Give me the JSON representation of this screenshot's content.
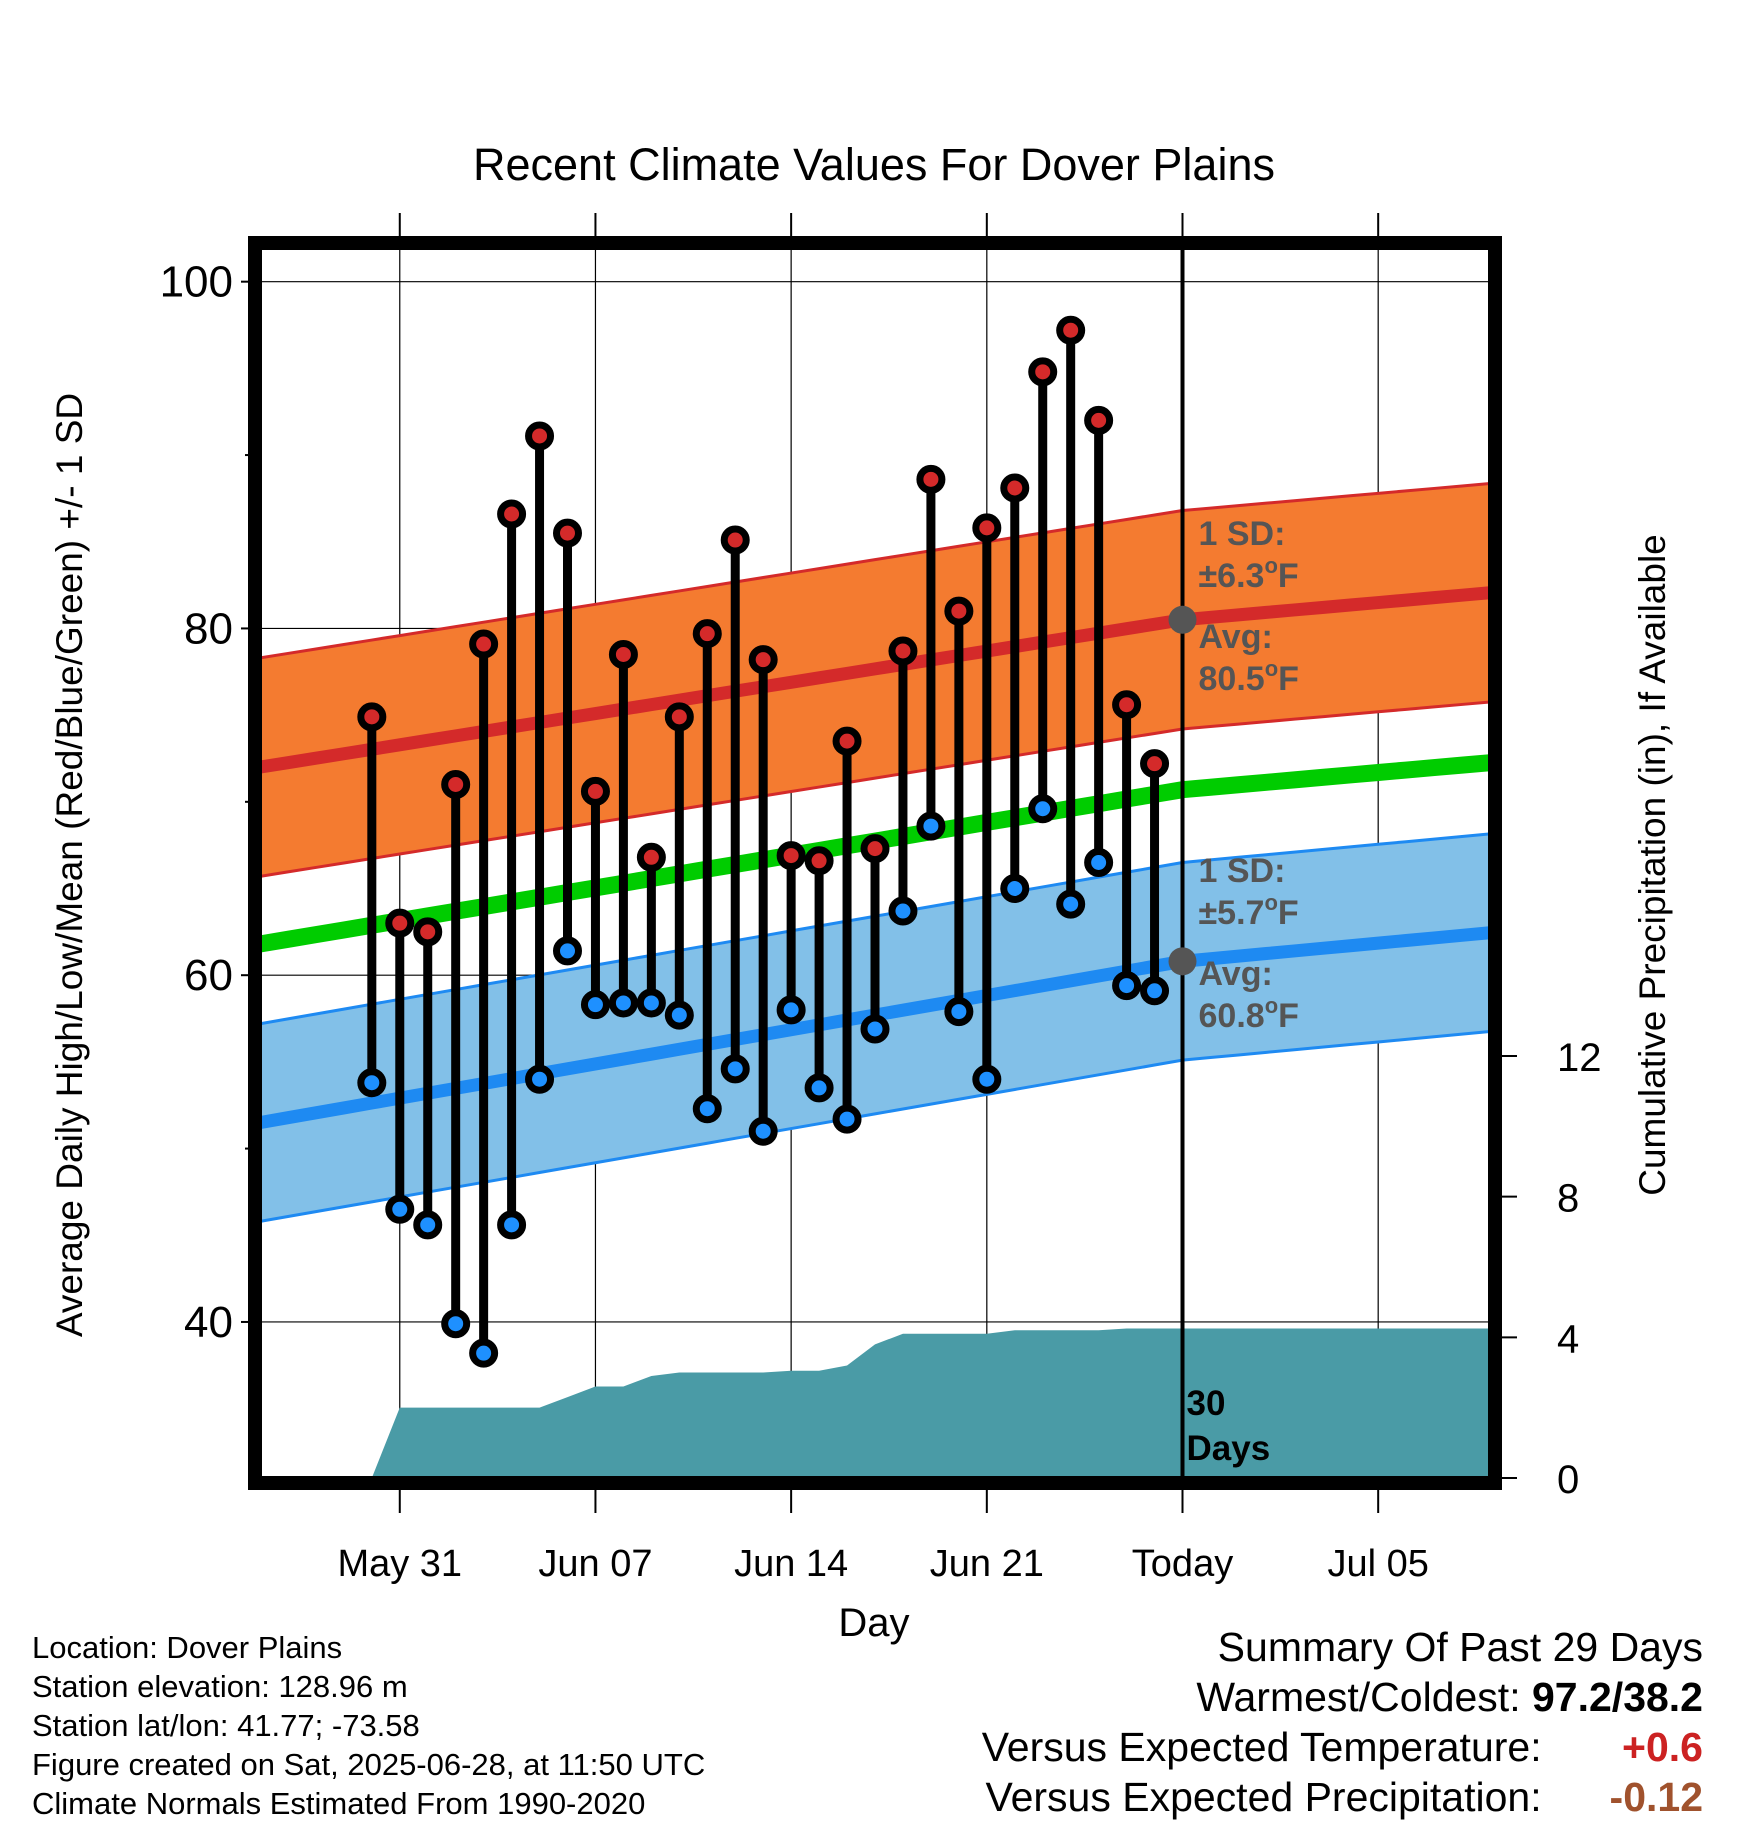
{
  "chart_data": {
    "type": "line",
    "title": "Recent Climate Values For Dover Plains",
    "xlabel": "Day",
    "ylabel": "Average Daily High/Low/Mean (Red/Blue/Green) +/- 1 SD",
    "y2label": "Cumulative Precipitation (in), If Available",
    "xlim": [
      "2025-05-26",
      "2025-07-09"
    ],
    "ylim": [
      31,
      102
    ],
    "y2lim": [
      0,
      35
    ],
    "y_ticks": [
      "40",
      "60",
      "80",
      "100"
    ],
    "y2_ticks": [
      "0",
      "4",
      "8",
      "12"
    ],
    "x_ticks": [
      {
        "date": "2025-05-31",
        "label": "May 31"
      },
      {
        "date": "2025-06-07",
        "label": "Jun 07"
      },
      {
        "date": "2025-06-14",
        "label": "Jun 14"
      },
      {
        "date": "2025-06-21",
        "label": "Jun 21"
      },
      {
        "date": "2025-06-28",
        "label": "Today"
      },
      {
        "date": "2025-07-05",
        "label": "Jul 05"
      }
    ],
    "grid": true,
    "normals": {
      "high_mean": {
        "dates": [
          "2025-05-26",
          "2025-06-28",
          "2025-07-10"
        ],
        "values": [
          72.0,
          80.5,
          82.2
        ]
      },
      "low_mean": {
        "dates": [
          "2025-05-26",
          "2025-06-28",
          "2025-07-10"
        ],
        "values": [
          51.5,
          60.8,
          62.6
        ]
      },
      "mean": {
        "dates": [
          "2025-05-26",
          "2025-06-28",
          "2025-07-10"
        ],
        "values": [
          61.8,
          70.7,
          72.4
        ]
      },
      "high_sd": 6.3,
      "low_sd": 5.7
    },
    "daily": {
      "dates": [
        "2025-05-30",
        "2025-05-31",
        "2025-06-01",
        "2025-06-02",
        "2025-06-03",
        "2025-06-04",
        "2025-06-05",
        "2025-06-06",
        "2025-06-07",
        "2025-06-08",
        "2025-06-09",
        "2025-06-10",
        "2025-06-11",
        "2025-06-12",
        "2025-06-13",
        "2025-06-14",
        "2025-06-15",
        "2025-06-16",
        "2025-06-17",
        "2025-06-18",
        "2025-06-19",
        "2025-06-20",
        "2025-06-21",
        "2025-06-22",
        "2025-06-23",
        "2025-06-24",
        "2025-06-25",
        "2025-06-26",
        "2025-06-27"
      ],
      "highs": [
        74.9,
        63.0,
        62.5,
        71.0,
        79.1,
        86.6,
        91.1,
        85.5,
        70.6,
        78.5,
        66.8,
        74.9,
        79.7,
        85.1,
        78.2,
        66.9,
        66.6,
        73.5,
        67.3,
        78.7,
        88.6,
        81.0,
        85.8,
        88.1,
        94.8,
        97.2,
        92.0,
        75.6,
        72.2
      ],
      "lows": [
        53.8,
        46.5,
        45.6,
        39.9,
        38.2,
        45.6,
        54.0,
        61.4,
        58.3,
        58.4,
        58.4,
        57.7,
        52.3,
        54.6,
        51.0,
        58.0,
        53.5,
        51.7,
        56.9,
        63.7,
        68.6,
        57.9,
        54.0,
        65.0,
        69.6,
        64.1,
        66.5,
        59.4,
        59.1
      ]
    },
    "precip_cumulative": {
      "dates": [
        "2025-05-30",
        "2025-05-31",
        "2025-06-01",
        "2025-06-02",
        "2025-06-03",
        "2025-06-04",
        "2025-06-05",
        "2025-06-06",
        "2025-06-07",
        "2025-06-08",
        "2025-06-09",
        "2025-06-10",
        "2025-06-11",
        "2025-06-12",
        "2025-06-13",
        "2025-06-14",
        "2025-06-15",
        "2025-06-16",
        "2025-06-17",
        "2025-06-18",
        "2025-06-19",
        "2025-06-20",
        "2025-06-21",
        "2025-06-22",
        "2025-06-23",
        "2025-06-24",
        "2025-06-25",
        "2025-06-26",
        "2025-06-27",
        "2025-06-28",
        "2025-07-09"
      ],
      "values": [
        0.0,
        2.0,
        2.0,
        2.0,
        2.0,
        2.0,
        2.0,
        2.3,
        2.6,
        2.6,
        2.9,
        3.0,
        3.0,
        3.0,
        3.0,
        3.05,
        3.05,
        3.2,
        3.8,
        4.1,
        4.1,
        4.1,
        4.1,
        4.2,
        4.2,
        4.2,
        4.2,
        4.25,
        4.25,
        4.25,
        4.25
      ]
    },
    "annotations": {
      "high_sd_label": [
        "1 SD:",
        "±6.3°F"
      ],
      "high_avg_label": [
        "Avg:",
        "80.5°F"
      ],
      "low_sd_label": [
        "1 SD:",
        "±5.7°F"
      ],
      "low_avg_label": [
        "Avg:",
        "60.8°F"
      ],
      "window_label": [
        "30",
        "Days"
      ]
    },
    "colors": {
      "high_band": "#f47b30",
      "high_line": "#d42a2a",
      "low_band": "#82c0e8",
      "low_line": "#1e8af2",
      "mean_line": "#00cc00",
      "precip": "#4a9ba6",
      "high_marker": "#d42a2a",
      "low_marker": "#1e90ff",
      "annotation_text": "#555555"
    }
  },
  "footer": {
    "location": "Location: Dover Plains",
    "elevation": "Station elevation: 128.96 m",
    "latlon": "Station lat/lon: 41.77; -73.58",
    "created": "Figure created on Sat, 2025-06-28, at 11:50 UTC",
    "normals": "Climate Normals Estimated From 1990-2020"
  },
  "summary": {
    "title": "Summary Of Past 29 Days",
    "warmest_label": "Warmest/Coldest:",
    "warmest_value": "97.2/38.2",
    "temp_label": "Versus Expected Temperature:",
    "temp_value": "+0.6",
    "temp_color": "#cc2222",
    "precip_label": "Versus Expected Precipitation:",
    "precip_value": "-0.12",
    "precip_color": "#a0522d"
  }
}
